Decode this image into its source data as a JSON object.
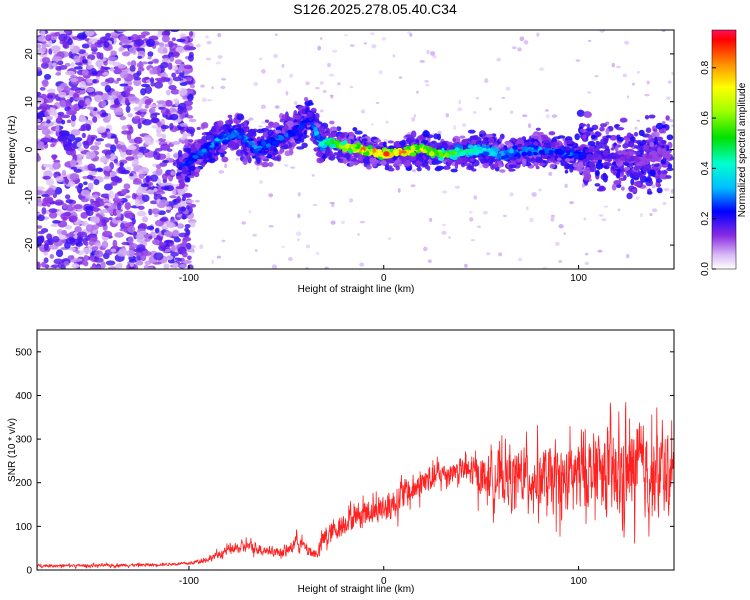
{
  "title": "S126.2025.278.05.40.C34",
  "colors": {
    "snr_line": "#ff2020",
    "frame": "#000000",
    "background": "#ffffff"
  },
  "chart_data": [
    {
      "type": "heatmap",
      "name": "spectrogram",
      "xlabel": "Height of straight line (km)",
      "ylabel": "Frequency (Hz)",
      "xlim": [
        -178,
        149
      ],
      "ylim": [
        -25,
        25
      ],
      "xticks": [
        -100,
        0,
        100
      ],
      "xtick_labels": [
        "-100",
        "0",
        "100"
      ],
      "yticks": [
        -20,
        -10,
        0,
        10,
        20
      ],
      "ytick_labels": [
        "-20",
        "-10",
        "0",
        "10",
        "20"
      ],
      "colorbar": {
        "label": "Normalized spectral amplitude",
        "range": [
          0.0,
          0.95
        ],
        "ticks": [
          0.0,
          0.2,
          0.4,
          0.6,
          0.8
        ],
        "tick_labels": [
          "0.0",
          "0.2",
          "0.4",
          "0.6",
          "0.8"
        ],
        "colormap": "rainbow"
      },
      "ridge": {
        "x_km": [
          -105,
          -95,
          -85,
          -75,
          -65,
          -55,
          -45,
          -38,
          -32,
          -28,
          -20,
          -10,
          0,
          10,
          20,
          30,
          40,
          50,
          60,
          70,
          80,
          90,
          100,
          110,
          120,
          130,
          140,
          147
        ],
        "freq_hz": [
          -4,
          -1,
          2,
          3.5,
          0,
          2,
          4,
          6.5,
          1,
          1.5,
          0.5,
          0,
          -1,
          -0.5,
          0,
          -1,
          -0.5,
          0,
          -1,
          -0.5,
          0,
          -0.5,
          -1,
          -1,
          -1.5,
          -2,
          -1,
          -1
        ],
        "amplitude": [
          0.25,
          0.3,
          0.35,
          0.35,
          0.35,
          0.3,
          0.3,
          0.25,
          0.45,
          0.55,
          0.75,
          0.85,
          0.9,
          0.9,
          0.8,
          0.7,
          0.55,
          0.45,
          0.4,
          0.35,
          0.35,
          0.3,
          0.3,
          0.2,
          0.2,
          0.15,
          0.15,
          0.15
        ]
      }
    },
    {
      "type": "line",
      "name": "snr",
      "xlabel": "Height of straight line (km)",
      "ylabel": "SNR (10 * v/v)",
      "xlim": [
        -178,
        149
      ],
      "ylim": [
        0,
        550
      ],
      "xticks": [
        -100,
        0,
        100
      ],
      "xtick_labels": [
        "-100",
        "0",
        "100"
      ],
      "yticks": [
        0,
        100,
        200,
        300,
        400,
        500
      ],
      "ytick_labels": [
        "0",
        "100",
        "200",
        "300",
        "400",
        "500"
      ],
      "series": [
        {
          "name": "SNR",
          "x": [
            -178,
            -150,
            -120,
            -100,
            -90,
            -80,
            -70,
            -60,
            -50,
            -45,
            -40,
            -35,
            -30,
            -25,
            -20,
            -10,
            0,
            10,
            20,
            30,
            40,
            50,
            60,
            70,
            80,
            90,
            100,
            110,
            120,
            130,
            140,
            149
          ],
          "y": [
            10,
            10,
            12,
            15,
            25,
            45,
            55,
            45,
            40,
            70,
            50,
            35,
            75,
            90,
            110,
            135,
            140,
            170,
            200,
            220,
            230,
            215,
            210,
            215,
            210,
            200,
            220,
            230,
            210,
            230,
            220,
            215
          ],
          "spread": [
            8,
            8,
            8,
            8,
            15,
            25,
            30,
            25,
            25,
            35,
            30,
            25,
            70,
            50,
            60,
            70,
            80,
            80,
            80,
            60,
            60,
            110,
            130,
            140,
            160,
            170,
            170,
            200,
            220,
            240,
            220,
            200
          ]
        }
      ]
    }
  ]
}
